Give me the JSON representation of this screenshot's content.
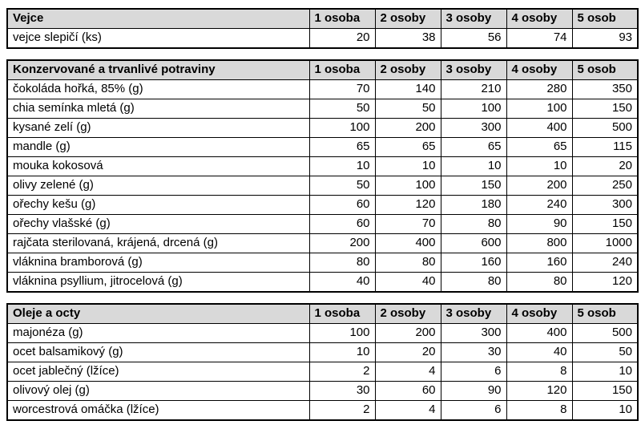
{
  "colors": {
    "header_fill": "#d9d9d9",
    "border": "#000000",
    "text": "#000000",
    "background": "#ffffff"
  },
  "columns": [
    "1 osoba",
    "2 osoby",
    "3 osoby",
    "4 osoby",
    "5 osob"
  ],
  "tables": [
    {
      "title": "Vejce",
      "rows": [
        {
          "label": "vejce slepičí (ks)",
          "values": [
            20,
            38,
            56,
            74,
            93
          ]
        }
      ]
    },
    {
      "title": "Konzervované a trvanlivé potraviny",
      "rows": [
        {
          "label": "čokoláda hořká, 85% (g)",
          "values": [
            70,
            140,
            210,
            280,
            350
          ]
        },
        {
          "label": "chia semínka mletá (g)",
          "values": [
            50,
            50,
            100,
            100,
            150
          ]
        },
        {
          "label": "kysané zelí (g)",
          "values": [
            100,
            200,
            300,
            400,
            500
          ]
        },
        {
          "label": "mandle (g)",
          "values": [
            65,
            65,
            65,
            65,
            115
          ]
        },
        {
          "label": "mouka kokosová",
          "values": [
            10,
            10,
            10,
            10,
            20
          ]
        },
        {
          "label": "olivy zelené (g)",
          "values": [
            50,
            100,
            150,
            200,
            250
          ]
        },
        {
          "label": "ořechy kešu (g)",
          "values": [
            60,
            120,
            180,
            240,
            300
          ]
        },
        {
          "label": "ořechy vlašské (g)",
          "values": [
            60,
            70,
            80,
            90,
            150
          ]
        },
        {
          "label": "rajčata sterilovaná, krájená, drcená (g)",
          "values": [
            200,
            400,
            600,
            800,
            1000
          ]
        },
        {
          "label": "vláknina bramborová (g)",
          "values": [
            80,
            80,
            160,
            160,
            240
          ]
        },
        {
          "label": "vláknina psyllium, jitrocelová (g)",
          "values": [
            40,
            40,
            80,
            80,
            120
          ]
        }
      ]
    },
    {
      "title": "Oleje a octy",
      "rows": [
        {
          "label": "majonéza (g)",
          "values": [
            100,
            200,
            300,
            400,
            500
          ]
        },
        {
          "label": "ocet balsamikový (g)",
          "values": [
            10,
            20,
            30,
            40,
            50
          ]
        },
        {
          "label": "ocet jablečný (lžíce)",
          "values": [
            2,
            4,
            6,
            8,
            10
          ]
        },
        {
          "label": "olivový olej (g)",
          "values": [
            30,
            60,
            90,
            120,
            150
          ]
        },
        {
          "label": "worcestrová omáčka (lžíce)",
          "values": [
            2,
            4,
            6,
            8,
            10
          ]
        }
      ]
    }
  ]
}
